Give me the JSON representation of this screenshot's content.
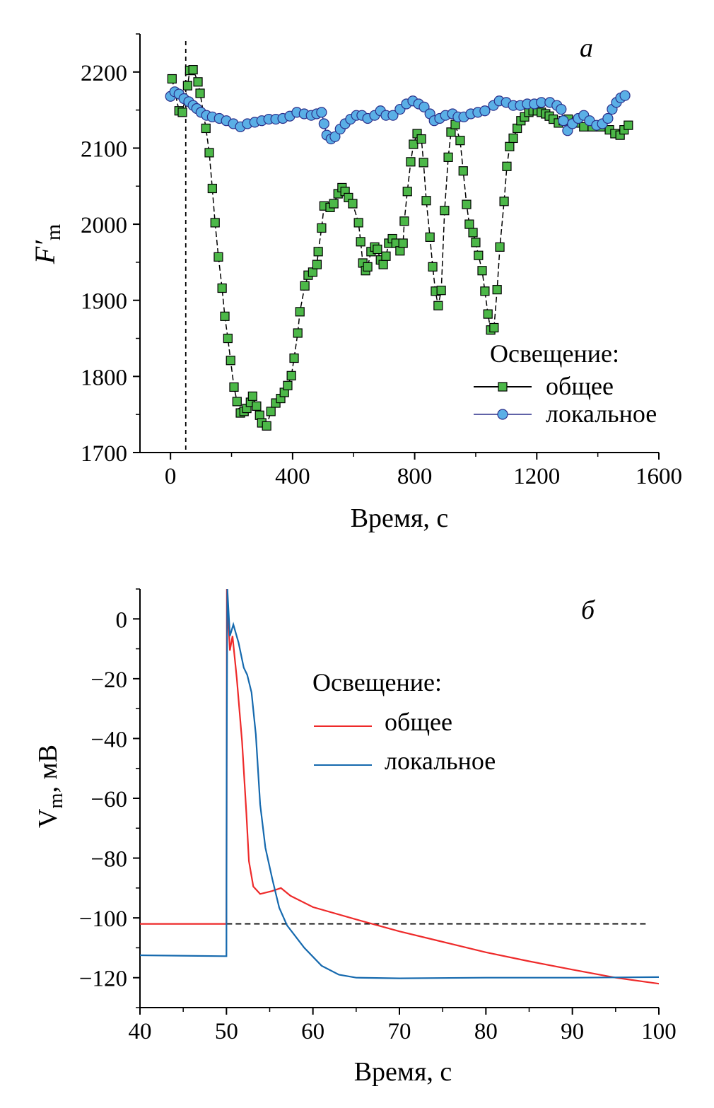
{
  "chart_data": [
    {
      "type": "scatter",
      "panel_label": "a",
      "xlabel": "Время, с",
      "ylabel": "F′m",
      "xlim": [
        -100,
        1600
      ],
      "ylim": [
        1700,
        2250
      ],
      "xticks": [
        0,
        400,
        800,
        1200,
        1600
      ],
      "yticks": [
        1700,
        1800,
        1900,
        2000,
        2100,
        2200
      ],
      "grid": false,
      "vline_dashed": 50,
      "legend": {
        "title": "Освещение:",
        "placement": "bottom-right"
      },
      "series": [
        {
          "name": "общее",
          "marker": "square",
          "color": "#4cb848",
          "line_color": "#000000",
          "x": [
            5,
            28,
            39,
            56,
            63,
            74,
            90,
            97,
            116,
            127,
            137,
            146,
            157,
            169,
            178,
            188,
            197,
            208,
            218,
            229,
            241,
            250,
            262,
            269,
            282,
            292,
            299,
            315,
            329,
            345,
            361,
            373,
            384,
            396,
            405,
            417,
            424,
            440,
            451,
            466,
            480,
            484,
            495,
            503,
            523,
            535,
            549,
            562,
            572,
            583,
            597,
            616,
            623,
            630,
            639,
            646,
            657,
            669,
            678,
            688,
            697,
            706,
            715,
            727,
            739,
            752,
            762,
            766,
            776,
            787,
            796,
            808,
            822,
            829,
            838,
            850,
            859,
            868,
            877,
            887,
            898,
            910,
            919,
            933,
            949,
            959,
            970,
            979,
            991,
            1000,
            1009,
            1021,
            1030,
            1040,
            1049,
            1060,
            1070,
            1079,
            1093,
            1102,
            1111,
            1123,
            1136,
            1148,
            1160,
            1174,
            1188,
            1202,
            1215,
            1229,
            1241,
            1254,
            1271,
            1287,
            1303,
            1327,
            1354,
            1382,
            1410,
            1438,
            1456,
            1473,
            1486,
            1500
          ],
          "y": [
            2191,
            2149,
            2147,
            2182,
            2202,
            2203,
            2187,
            2172,
            2126,
            2094,
            2047,
            2002,
            1957,
            1916,
            1879,
            1850,
            1821,
            1786,
            1767,
            1752,
            1754,
            1758,
            1766,
            1774,
            1761,
            1749,
            1739,
            1735,
            1754,
            1765,
            1771,
            1779,
            1788,
            1801,
            1824,
            1857,
            1885,
            1919,
            1933,
            1937,
            1947,
            1964,
            1995,
            2024,
            2022,
            2027,
            2040,
            2048,
            2043,
            2035,
            2027,
            2002,
            1977,
            1949,
            1939,
            1944,
            1964,
            1970,
            1967,
            1953,
            1947,
            1958,
            1975,
            1981,
            1975,
            1965,
            1975,
            2004,
            2043,
            2082,
            2105,
            2119,
            2112,
            2081,
            2031,
            1983,
            1944,
            1912,
            1893,
            1913,
            2018,
            2088,
            2121,
            2131,
            2110,
            2070,
            2026,
            2000,
            1989,
            1976,
            1959,
            1939,
            1912,
            1882,
            1861,
            1864,
            1914,
            1970,
            2030,
            2076,
            2102,
            2113,
            2126,
            2136,
            2141,
            2147,
            2149,
            2149,
            2147,
            2145,
            2142,
            2138,
            2133,
            2136,
            2138,
            2133,
            2128,
            2128,
            2128,
            2124,
            2119,
            2117,
            2124,
            2130
          ]
        },
        {
          "name": "локальное",
          "marker": "circle",
          "color": "#5aafe6",
          "line_color": "#2b2f8a",
          "x": [
            0,
            14,
            28,
            44,
            60,
            74,
            86,
            100,
            118,
            137,
            160,
            183,
            206,
            229,
            252,
            276,
            299,
            322,
            345,
            368,
            391,
            414,
            438,
            461,
            479,
            495,
            503,
            512,
            526,
            539,
            556,
            572,
            590,
            609,
            627,
            646,
            669,
            688,
            706,
            729,
            752,
            773,
            794,
            813,
            831,
            850,
            864,
            882,
            901,
            924,
            942,
            961,
            984,
            1007,
            1030,
            1058,
            1077,
            1100,
            1123,
            1146,
            1169,
            1192,
            1215,
            1243,
            1266,
            1280,
            1287,
            1301,
            1317,
            1336,
            1354,
            1373,
            1396,
            1415,
            1433,
            1447,
            1461,
            1475,
            1489
          ],
          "y": [
            2168,
            2174,
            2171,
            2165,
            2161,
            2156,
            2152,
            2147,
            2143,
            2141,
            2139,
            2136,
            2132,
            2128,
            2132,
            2134,
            2136,
            2138,
            2138,
            2139,
            2142,
            2147,
            2145,
            2143,
            2145,
            2147,
            2132,
            2117,
            2112,
            2115,
            2125,
            2132,
            2138,
            2143,
            2143,
            2139,
            2143,
            2149,
            2143,
            2143,
            2151,
            2158,
            2162,
            2158,
            2154,
            2145,
            2136,
            2139,
            2143,
            2145,
            2141,
            2141,
            2145,
            2147,
            2149,
            2156,
            2162,
            2160,
            2156,
            2156,
            2158,
            2158,
            2160,
            2160,
            2156,
            2151,
            2136,
            2123,
            2132,
            2139,
            2143,
            2136,
            2130,
            2132,
            2139,
            2151,
            2160,
            2166,
            2169
          ]
        }
      ]
    },
    {
      "type": "line",
      "panel_label": "б",
      "xlabel": "Время, с",
      "ylabel": "Vm, мВ",
      "xlim": [
        40,
        100
      ],
      "ylim": [
        -130,
        10
      ],
      "xticks": [
        40,
        50,
        60,
        70,
        80,
        90,
        100
      ],
      "yticks": [
        0,
        -20,
        -40,
        -60,
        -80,
        -100,
        -120
      ],
      "grid": false,
      "hline_dashed": {
        "y": -102,
        "x": [
          50,
          98.5
        ]
      },
      "legend": {
        "title": "Освещение:",
        "placement": "top-right"
      },
      "series": [
        {
          "name": "общее",
          "color": "#ee2a2a",
          "x": [
            40,
            50,
            50.02,
            50.05,
            50.4,
            50.7,
            51.2,
            51.8,
            52.3,
            52.6,
            53.1,
            53.9,
            55.3,
            56.3,
            57.4,
            60,
            65,
            70,
            75,
            80,
            85,
            90,
            95,
            100
          ],
          "y": [
            -102,
            -102,
            -60,
            10,
            -10.6,
            -5.7,
            -20,
            -41,
            -65,
            -81,
            -89.5,
            -92,
            -91,
            -90,
            -92.6,
            -96.4,
            -100.5,
            -104.5,
            -108,
            -111.5,
            -114.5,
            -117.3,
            -120,
            -122
          ]
        },
        {
          "name": "локальное",
          "color": "#1569ae",
          "x": [
            40,
            50,
            50.02,
            50.1,
            50.4,
            50.8,
            51.4,
            52,
            52.4,
            52.9,
            53.4,
            53.9,
            54.5,
            55.3,
            56.1,
            57,
            59,
            61,
            63,
            65,
            70,
            80,
            90,
            100
          ],
          "y": [
            -112.5,
            -112.8,
            -50,
            10,
            -5.7,
            -1.9,
            -8,
            -16.3,
            -18.7,
            -24.6,
            -38.7,
            -62,
            -76.5,
            -87,
            -96.6,
            -102.5,
            -110,
            -116,
            -119,
            -120,
            -120.2,
            -120,
            -120,
            -119.8
          ]
        }
      ]
    }
  ]
}
